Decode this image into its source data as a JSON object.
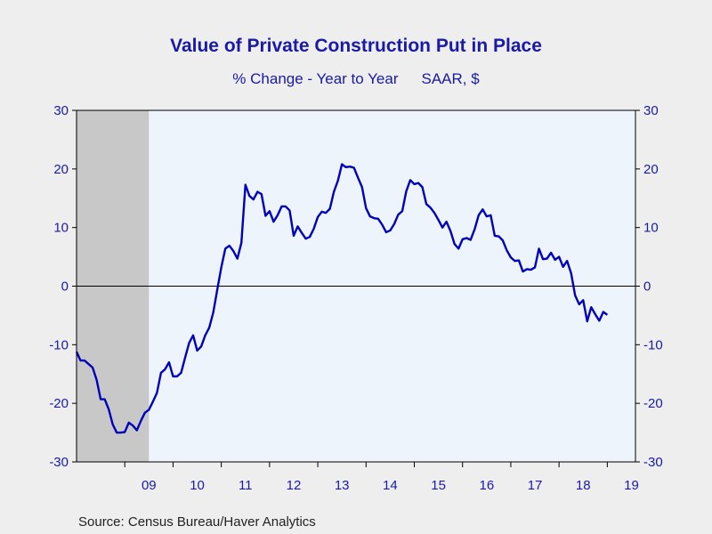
{
  "chart_data": {
    "type": "line",
    "title": "Value of Private Construction Put in Place",
    "subtitle_left": "% Change - Year to Year",
    "subtitle_right": "SAAR, $",
    "source": "Source:  Census Bureau/Haver Analytics",
    "ylim": [
      -30,
      30
    ],
    "y_ticks": [
      30,
      20,
      10,
      0,
      -10,
      -20,
      -30
    ],
    "x_start_year": 2008,
    "x_end_year": 2019,
    "x_labels": [
      "09",
      "10",
      "11",
      "12",
      "13",
      "14",
      "15",
      "16",
      "17",
      "18",
      "19"
    ],
    "recession_shading": {
      "start": "2008-01",
      "end": "2009-06"
    },
    "zero_line": true,
    "colors": {
      "line": "#0000bb",
      "text": "#1a1aa6",
      "plot_bg": "#eef4fb",
      "recession": "#c8c8c8",
      "page_bg": "#eeeeee"
    },
    "series": [
      {
        "start": "2008-01",
        "frequency": "monthly",
        "values": [
          -11.2,
          -12.7,
          -12.7,
          -13.3,
          -13.9,
          -16.0,
          -19.3,
          -19.3,
          -21.0,
          -23.6,
          -25.0,
          -25.0,
          -24.9,
          -23.3,
          -23.8,
          -24.6,
          -23.0,
          -21.6,
          -21.1,
          -19.7,
          -18.2,
          -14.8,
          -14.2,
          -13.0,
          -15.4,
          -15.4,
          -14.8,
          -12.2,
          -9.7,
          -8.4,
          -11.0,
          -10.3,
          -8.4,
          -7.1,
          -4.5,
          -0.6,
          3.2,
          6.4,
          6.9,
          6.0,
          4.7,
          7.4,
          17.3,
          15.4,
          14.8,
          16.1,
          15.7,
          12.0,
          12.8,
          11.0,
          12.1,
          13.6,
          13.6,
          12.9,
          8.6,
          10.2,
          9.1,
          8.1,
          8.4,
          9.8,
          11.8,
          12.7,
          12.5,
          13.2,
          16.1,
          18.0,
          20.8,
          20.3,
          20.4,
          20.2,
          18.5,
          16.9,
          13.3,
          11.9,
          11.6,
          11.5,
          10.5,
          9.2,
          9.5,
          10.6,
          12.2,
          12.8,
          16.2,
          18.1,
          17.4,
          17.6,
          16.9,
          14.0,
          13.4,
          12.5,
          11.3,
          10.0,
          11.0,
          9.4,
          7.2,
          6.4,
          8.0,
          8.2,
          7.9,
          9.7,
          12.1,
          13.1,
          11.9,
          12.1,
          8.6,
          8.5,
          7.8,
          6.1,
          4.9,
          4.3,
          4.4,
          2.5,
          2.9,
          2.8,
          3.2,
          6.4,
          4.6,
          4.7,
          5.7,
          4.5,
          5.0,
          3.3,
          4.3,
          2.2,
          -1.6,
          -3.1,
          -2.4,
          -6.0,
          -3.6,
          -4.8,
          -5.9,
          -4.4,
          -4.9
        ]
      }
    ]
  }
}
